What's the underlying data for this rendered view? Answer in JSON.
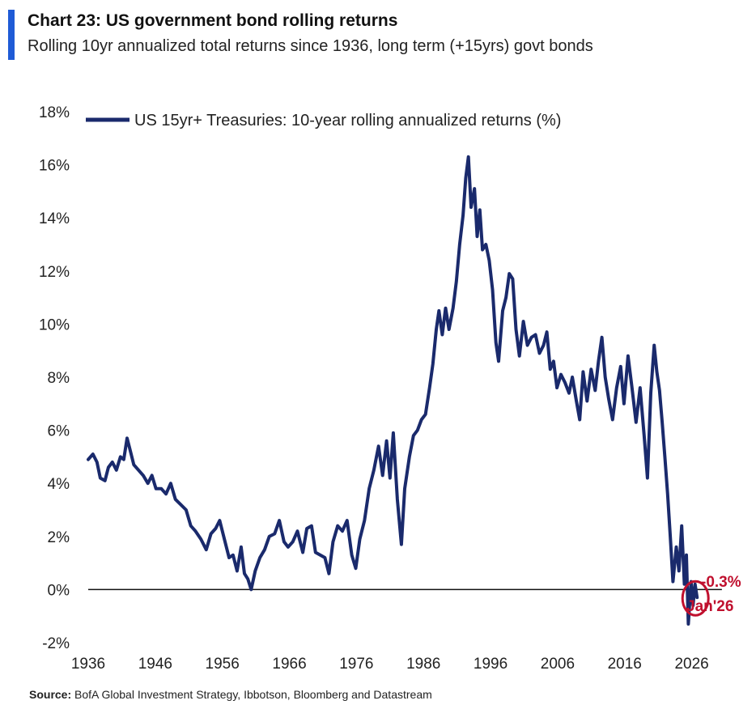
{
  "header": {
    "title": "Chart 23: US government bond rolling returns",
    "subtitle": "Rolling 10yr annualized total returns since 1936, long term (+15yrs) govt bonds"
  },
  "source": {
    "label": "Source:",
    "text": " BofA Global Investment Strategy, Ibbotson, Bloomberg and Datastream"
  },
  "colors": {
    "series": "#1a2a6c",
    "accent_bar": "#1f5bd6",
    "annotation": "#c0102e"
  },
  "chart_data": {
    "type": "line",
    "title": "Chart 23: US government bond rolling returns",
    "xlabel": "",
    "ylabel": "",
    "xlim": [
      1936,
      2031
    ],
    "ylim": [
      -2,
      18
    ],
    "x_ticks": [
      "1936",
      "1946",
      "1956",
      "1966",
      "1976",
      "1986",
      "1996",
      "2006",
      "2016",
      "2026"
    ],
    "y_ticks": [
      "-2%",
      "0%",
      "2%",
      "4%",
      "6%",
      "8%",
      "10%",
      "12%",
      "14%",
      "16%",
      "18%"
    ],
    "legend": {
      "position": "top-left",
      "entries": [
        "US 15yr+ Treasuries: 10-year rolling annualized returns (%)"
      ]
    },
    "annotations": {
      "value": "-0.3%",
      "date": "Jan'26"
    },
    "series": [
      {
        "name": "US 15yr+ Treasuries: 10-year rolling annualized returns (%)",
        "points": [
          [
            1936.0,
            4.9
          ],
          [
            1936.7,
            5.1
          ],
          [
            1937.3,
            4.8
          ],
          [
            1937.8,
            4.2
          ],
          [
            1938.5,
            4.1
          ],
          [
            1939.0,
            4.6
          ],
          [
            1939.6,
            4.8
          ],
          [
            1940.2,
            4.5
          ],
          [
            1940.8,
            5.0
          ],
          [
            1941.3,
            4.9
          ],
          [
            1941.8,
            5.7
          ],
          [
            1942.2,
            5.3
          ],
          [
            1942.8,
            4.7
          ],
          [
            1943.5,
            4.5
          ],
          [
            1944.2,
            4.3
          ],
          [
            1944.9,
            4.0
          ],
          [
            1945.5,
            4.3
          ],
          [
            1946.1,
            3.8
          ],
          [
            1946.9,
            3.8
          ],
          [
            1947.6,
            3.6
          ],
          [
            1948.3,
            4.0
          ],
          [
            1949.0,
            3.4
          ],
          [
            1949.8,
            3.2
          ],
          [
            1950.6,
            3.0
          ],
          [
            1951.3,
            2.4
          ],
          [
            1952.0,
            2.2
          ],
          [
            1952.8,
            1.9
          ],
          [
            1953.6,
            1.5
          ],
          [
            1954.3,
            2.1
          ],
          [
            1955.0,
            2.3
          ],
          [
            1955.6,
            2.6
          ],
          [
            1956.3,
            1.9
          ],
          [
            1957.0,
            1.2
          ],
          [
            1957.6,
            1.3
          ],
          [
            1958.2,
            0.7
          ],
          [
            1958.8,
            1.6
          ],
          [
            1959.3,
            0.6
          ],
          [
            1959.8,
            0.4
          ],
          [
            1960.3,
            0.0
          ],
          [
            1960.9,
            0.7
          ],
          [
            1961.6,
            1.2
          ],
          [
            1962.3,
            1.5
          ],
          [
            1963.0,
            2.0
          ],
          [
            1963.8,
            2.1
          ],
          [
            1964.5,
            2.6
          ],
          [
            1965.2,
            1.8
          ],
          [
            1965.8,
            1.6
          ],
          [
            1966.5,
            1.8
          ],
          [
            1967.2,
            2.2
          ],
          [
            1968.0,
            1.4
          ],
          [
            1968.6,
            2.3
          ],
          [
            1969.3,
            2.4
          ],
          [
            1969.9,
            1.4
          ],
          [
            1970.6,
            1.3
          ],
          [
            1971.3,
            1.2
          ],
          [
            1971.9,
            0.6
          ],
          [
            1972.5,
            1.8
          ],
          [
            1973.2,
            2.4
          ],
          [
            1973.9,
            2.2
          ],
          [
            1974.6,
            2.6
          ],
          [
            1975.3,
            1.3
          ],
          [
            1975.9,
            0.8
          ],
          [
            1976.5,
            1.9
          ],
          [
            1977.2,
            2.6
          ],
          [
            1977.9,
            3.8
          ],
          [
            1978.6,
            4.5
          ],
          [
            1979.3,
            5.4
          ],
          [
            1979.9,
            4.3
          ],
          [
            1980.5,
            5.6
          ],
          [
            1981.0,
            4.2
          ],
          [
            1981.5,
            5.9
          ],
          [
            1982.1,
            3.4
          ],
          [
            1982.7,
            1.7
          ],
          [
            1983.2,
            3.8
          ],
          [
            1983.9,
            5.0
          ],
          [
            1984.5,
            5.8
          ],
          [
            1985.1,
            6.0
          ],
          [
            1985.7,
            6.4
          ],
          [
            1986.3,
            6.6
          ],
          [
            1986.9,
            7.6
          ],
          [
            1987.4,
            8.5
          ],
          [
            1987.9,
            9.8
          ],
          [
            1988.3,
            10.5
          ],
          [
            1988.8,
            9.6
          ],
          [
            1989.3,
            10.6
          ],
          [
            1989.8,
            9.8
          ],
          [
            1990.4,
            10.6
          ],
          [
            1990.9,
            11.6
          ],
          [
            1991.4,
            13.0
          ],
          [
            1991.9,
            14.1
          ],
          [
            1992.3,
            15.5
          ],
          [
            1992.7,
            16.3
          ],
          [
            1993.1,
            14.4
          ],
          [
            1993.6,
            15.1
          ],
          [
            1994.0,
            13.3
          ],
          [
            1994.4,
            14.3
          ],
          [
            1994.8,
            12.8
          ],
          [
            1995.3,
            13.0
          ],
          [
            1995.8,
            12.4
          ],
          [
            1996.3,
            11.3
          ],
          [
            1996.8,
            9.3
          ],
          [
            1997.2,
            8.6
          ],
          [
            1997.8,
            10.5
          ],
          [
            1998.3,
            11.0
          ],
          [
            1998.8,
            11.9
          ],
          [
            1999.3,
            11.7
          ],
          [
            1999.8,
            9.8
          ],
          [
            2000.3,
            8.8
          ],
          [
            2000.9,
            10.1
          ],
          [
            2001.5,
            9.2
          ],
          [
            2002.1,
            9.5
          ],
          [
            2002.7,
            9.6
          ],
          [
            2003.3,
            8.9
          ],
          [
            2003.9,
            9.2
          ],
          [
            2004.4,
            9.7
          ],
          [
            2004.9,
            8.3
          ],
          [
            2005.4,
            8.6
          ],
          [
            2005.9,
            7.6
          ],
          [
            2006.5,
            8.1
          ],
          [
            2007.1,
            7.8
          ],
          [
            2007.7,
            7.4
          ],
          [
            2008.2,
            8.0
          ],
          [
            2008.8,
            7.1
          ],
          [
            2009.3,
            6.4
          ],
          [
            2009.8,
            8.2
          ],
          [
            2010.4,
            7.1
          ],
          [
            2011.0,
            8.3
          ],
          [
            2011.6,
            7.5
          ],
          [
            2012.1,
            8.6
          ],
          [
            2012.6,
            9.5
          ],
          [
            2013.1,
            8.0
          ],
          [
            2013.6,
            7.2
          ],
          [
            2014.2,
            6.4
          ],
          [
            2014.8,
            7.6
          ],
          [
            2015.4,
            8.4
          ],
          [
            2015.9,
            7.0
          ],
          [
            2016.5,
            8.8
          ],
          [
            2017.1,
            7.6
          ],
          [
            2017.7,
            6.3
          ],
          [
            2018.3,
            7.6
          ],
          [
            2018.9,
            5.8
          ],
          [
            2019.4,
            4.2
          ],
          [
            2019.9,
            7.4
          ],
          [
            2020.4,
            9.2
          ],
          [
            2020.8,
            8.2
          ],
          [
            2021.2,
            7.5
          ],
          [
            2021.6,
            6.3
          ],
          [
            2022.0,
            5.0
          ],
          [
            2022.4,
            3.6
          ],
          [
            2022.8,
            2.0
          ],
          [
            2023.2,
            0.3
          ],
          [
            2023.7,
            1.6
          ],
          [
            2024.1,
            0.7
          ],
          [
            2024.5,
            2.4
          ],
          [
            2024.9,
            0.2
          ],
          [
            2025.2,
            1.3
          ],
          [
            2025.5,
            -1.3
          ],
          [
            2025.9,
            0.3
          ],
          [
            2026.2,
            -0.6
          ],
          [
            2026.5,
            0.2
          ],
          [
            2026.8,
            -0.3
          ]
        ]
      }
    ]
  }
}
